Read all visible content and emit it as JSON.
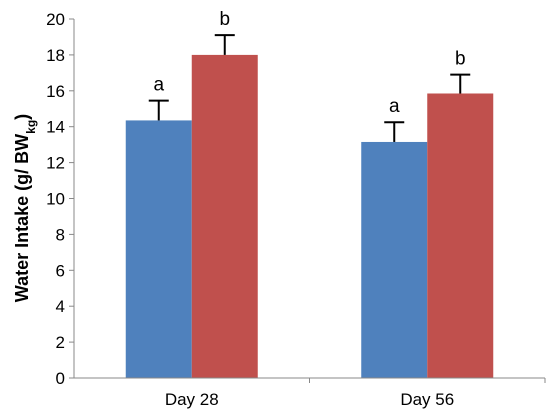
{
  "chart_data": {
    "type": "bar",
    "categories": [
      "Day 28",
      "Day 56"
    ],
    "series": [
      {
        "color": "#4f81bd",
        "values": [
          14.35,
          13.15
        ],
        "error": [
          1.1,
          1.1
        ],
        "significance": [
          "a",
          "a"
        ]
      },
      {
        "color": "#c0504d",
        "values": [
          18.0,
          15.85
        ],
        "error": [
          1.1,
          1.05
        ],
        "significance": [
          "b",
          "b"
        ]
      }
    ],
    "ylabel": {
      "main": "Water Intake (g/ BW",
      "subscript": "kg",
      "close": ")"
    },
    "ylim": [
      0,
      20
    ],
    "yticks": [
      0,
      2,
      4,
      6,
      8,
      10,
      12,
      14,
      16,
      18,
      20
    ],
    "grid": false,
    "legend": "none"
  }
}
